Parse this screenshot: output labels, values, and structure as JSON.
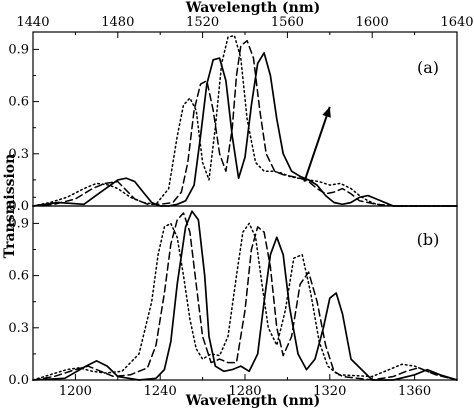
{
  "chart_data": {
    "type": "line",
    "ylabel": "Transmission",
    "line_styles": [
      "solid",
      "dashed",
      "dotted"
    ],
    "panels": [
      {
        "label": "(a)",
        "top_axis": {
          "xlabel": "Wavelength (nm)",
          "xlim": [
            1440,
            1640
          ],
          "ticks": [
            1440,
            1480,
            1520,
            1560,
            1600,
            1640
          ]
        },
        "ylim": [
          0,
          1
        ],
        "yticks": [
          "0.0",
          "0.3",
          "0.6",
          "0.9"
        ],
        "ytick_values": [
          0,
          0.3,
          0.6,
          0.9
        ],
        "arrow": {
          "from": [
            1568,
            0.14
          ],
          "to": [
            1580,
            0.57
          ]
        },
        "series": [
          {
            "style": "solid",
            "x": [
              1440,
              1452,
              1464,
              1472,
              1480,
              1484,
              1488,
              1492,
              1496,
              1500,
              1504,
              1508,
              1512,
              1516,
              1519,
              1522,
              1525,
              1528,
              1531,
              1534,
              1537,
              1540,
              1543,
              1546,
              1549,
              1552,
              1555,
              1558,
              1562,
              1566,
              1570,
              1574,
              1578,
              1582,
              1586,
              1590,
              1594,
              1598,
              1602,
              1610,
              1625,
              1640
            ],
            "y": [
              0.0,
              0.02,
              0.01,
              0.08,
              0.15,
              0.16,
              0.14,
              0.08,
              0.02,
              0.0,
              0.0,
              0.01,
              0.03,
              0.12,
              0.4,
              0.7,
              0.84,
              0.85,
              0.72,
              0.4,
              0.16,
              0.28,
              0.58,
              0.82,
              0.88,
              0.75,
              0.5,
              0.3,
              0.2,
              0.17,
              0.15,
              0.12,
              0.06,
              0.02,
              0.01,
              0.02,
              0.05,
              0.06,
              0.04,
              0.0,
              0.0,
              0.0
            ]
          },
          {
            "style": "dashed",
            "x": [
              1440,
              1450,
              1460,
              1468,
              1474,
              1480,
              1484,
              1488,
              1494,
              1500,
              1506,
              1510,
              1513,
              1516,
              1519,
              1522,
              1525,
              1528,
              1531,
              1534,
              1536,
              1538,
              1541,
              1544,
              1547,
              1550,
              1554,
              1558,
              1562,
              1566,
              1570,
              1574,
              1578,
              1582,
              1586,
              1590,
              1594,
              1598,
              1602,
              1610,
              1625,
              1640
            ],
            "y": [
              0.0,
              0.01,
              0.04,
              0.1,
              0.13,
              0.14,
              0.09,
              0.04,
              0.01,
              0.01,
              0.02,
              0.08,
              0.25,
              0.55,
              0.7,
              0.72,
              0.55,
              0.3,
              0.2,
              0.45,
              0.75,
              0.92,
              0.95,
              0.85,
              0.55,
              0.3,
              0.2,
              0.18,
              0.17,
              0.16,
              0.14,
              0.1,
              0.07,
              0.08,
              0.1,
              0.07,
              0.03,
              0.02,
              0.01,
              0.0,
              0.0,
              0.0
            ]
          },
          {
            "style": "dotted",
            "x": [
              1440,
              1448,
              1456,
              1464,
              1470,
              1476,
              1480,
              1486,
              1492,
              1498,
              1504,
              1508,
              1511,
              1514,
              1517,
              1520,
              1523,
              1526,
              1529,
              1532,
              1535,
              1538,
              1541,
              1545,
              1549,
              1553,
              1557,
              1561,
              1565,
              1570,
              1575,
              1580,
              1585,
              1590,
              1594,
              1598,
              1602,
              1610,
              1625,
              1640
            ],
            "y": [
              0.0,
              0.02,
              0.05,
              0.1,
              0.13,
              0.12,
              0.1,
              0.05,
              0.02,
              0.01,
              0.1,
              0.4,
              0.58,
              0.62,
              0.55,
              0.25,
              0.15,
              0.45,
              0.82,
              0.97,
              0.98,
              0.85,
              0.5,
              0.25,
              0.2,
              0.2,
              0.19,
              0.17,
              0.16,
              0.15,
              0.14,
              0.12,
              0.13,
              0.1,
              0.06,
              0.03,
              0.01,
              0.0,
              0.0,
              0.0
            ]
          }
        ]
      },
      {
        "label": "(b)",
        "bottom_axis": {
          "xlabel": "Wavelength (nm)",
          "xlim": [
            1180,
            1380
          ],
          "ticks": [
            1200,
            1240,
            1280,
            1320,
            1360
          ]
        },
        "ylim": [
          0,
          1
        ],
        "yticks": [
          "0.0",
          "0.3",
          "0.6",
          "0.9"
        ],
        "ytick_values": [
          0,
          0.3,
          0.6,
          0.9
        ],
        "series": [
          {
            "style": "solid",
            "x": [
              1180,
              1195,
              1205,
              1210,
              1215,
              1220,
              1230,
              1238,
              1242,
              1245,
              1248,
              1252,
              1255,
              1258,
              1261,
              1263,
              1266,
              1270,
              1274,
              1278,
              1282,
              1286,
              1289,
              1292,
              1295,
              1298,
              1301,
              1305,
              1309,
              1313,
              1317,
              1320,
              1323,
              1326,
              1330,
              1340,
              1350,
              1360,
              1366,
              1372,
              1380
            ],
            "y": [
              0.0,
              0.01,
              0.08,
              0.11,
              0.08,
              0.02,
              0.0,
              0.01,
              0.06,
              0.22,
              0.55,
              0.88,
              0.97,
              0.92,
              0.6,
              0.25,
              0.08,
              0.05,
              0.06,
              0.08,
              0.05,
              0.15,
              0.45,
              0.72,
              0.82,
              0.72,
              0.42,
              0.15,
              0.06,
              0.12,
              0.3,
              0.47,
              0.5,
              0.38,
              0.12,
              0.0,
              0.0,
              0.03,
              0.06,
              0.03,
              0.0
            ]
          },
          {
            "style": "dashed",
            "x": [
              1180,
              1190,
              1200,
              1206,
              1212,
              1218,
              1226,
              1234,
              1238,
              1242,
              1245,
              1248,
              1251,
              1254,
              1257,
              1260,
              1264,
              1268,
              1272,
              1276,
              1280,
              1283,
              1286,
              1289,
              1292,
              1295,
              1298,
              1302,
              1306,
              1310,
              1314,
              1318,
              1322,
              1326,
              1340,
              1350,
              1356,
              1362,
              1370,
              1380
            ],
            "y": [
              0.0,
              0.02,
              0.06,
              0.08,
              0.05,
              0.02,
              0.03,
              0.07,
              0.2,
              0.5,
              0.78,
              0.92,
              0.96,
              0.85,
              0.55,
              0.25,
              0.1,
              0.12,
              0.1,
              0.1,
              0.4,
              0.75,
              0.88,
              0.85,
              0.65,
              0.3,
              0.14,
              0.25,
              0.55,
              0.62,
              0.45,
              0.2,
              0.05,
              0.02,
              0.0,
              0.02,
              0.05,
              0.07,
              0.03,
              0.0
            ]
          },
          {
            "style": "dotted",
            "x": [
              1180,
              1188,
              1196,
              1202,
              1208,
              1214,
              1222,
              1230,
              1236,
              1239,
              1242,
              1245,
              1248,
              1251,
              1254,
              1257,
              1260,
              1264,
              1268,
              1272,
              1276,
              1279,
              1282,
              1285,
              1288,
              1291,
              1295,
              1299,
              1303,
              1307,
              1311,
              1315,
              1319,
              1324,
              1340,
              1348,
              1354,
              1360,
              1368,
              1380
            ],
            "y": [
              0.0,
              0.03,
              0.06,
              0.07,
              0.05,
              0.04,
              0.05,
              0.15,
              0.45,
              0.72,
              0.88,
              0.9,
              0.82,
              0.6,
              0.35,
              0.18,
              0.12,
              0.15,
              0.14,
              0.25,
              0.6,
              0.85,
              0.9,
              0.82,
              0.55,
              0.3,
              0.2,
              0.4,
              0.7,
              0.72,
              0.5,
              0.22,
              0.08,
              0.03,
              0.02,
              0.06,
              0.09,
              0.08,
              0.04,
              0.0
            ]
          }
        ]
      }
    ]
  }
}
